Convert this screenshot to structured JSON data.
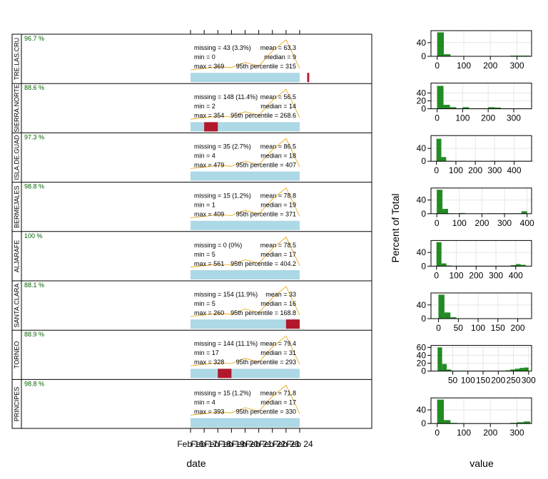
{
  "chart_data": [
    {
      "type": "summary-timeseries-panels",
      "xlabel": "date",
      "x_tick_labels": [
        "Feb 16",
        "Feb 17",
        "Feb 18",
        "Feb 19",
        "Feb 20",
        "Feb 21",
        "Feb 22",
        "Feb 23",
        "Feb 24"
      ],
      "series_line_color": "#E69F00",
      "missing_color": "#B2182B",
      "band_color": "#ADD8E6",
      "trace": [
        60,
        62,
        64,
        63,
        70,
        65,
        85,
        100,
        62
      ],
      "panels": [
        {
          "name": "TRE.LAS.CRU",
          "data_capture": "96.7 %",
          "missing": "missing = 43 (3.3%)",
          "min": "min = 0",
          "max": "max = 369",
          "mean": "mean = 63.3",
          "median": "median = 9",
          "p95": "95th percentile = 315",
          "missing_blocks": [
            [
              8.55,
              8.7
            ]
          ]
        },
        {
          "name": "SIERRA.NORTE",
          "data_capture": "88.6 %",
          "missing": "missing = 148 (11.4%)",
          "min": "min = 2",
          "max": "max = 354",
          "mean": "mean = 56.5",
          "median": "median = 14",
          "p95": "95th percentile = 268.6",
          "missing_blocks": [
            [
              1.0,
              2.0
            ]
          ]
        },
        {
          "name": "ISLA.DE.GUAD",
          "data_capture": "97.3 %",
          "missing": "missing = 35 (2.7%)",
          "min": "min = 4",
          "max": "max = 479",
          "mean": "mean = 86.5",
          "median": "median = 18",
          "p95": "95th percentile = 407",
          "missing_blocks": []
        },
        {
          "name": "BERMEJALES",
          "data_capture": "98.8 %",
          "missing": "missing = 15 (1.2%)",
          "min": "min = 1",
          "max": "max = 409",
          "mean": "mean = 78.8",
          "median": "median = 19",
          "p95": "95th percentile = 371",
          "missing_blocks": []
        },
        {
          "name": "ALJARAFE",
          "data_capture": "100 %",
          "missing": "missing = 0 (0%)",
          "min": "min = 5",
          "max": "max = 561",
          "mean": "mean = 78.5",
          "median": "median = 17",
          "p95": "95th percentile = 404.2",
          "missing_blocks": []
        },
        {
          "name": "SANTA.CLARA",
          "data_capture": "88.1 %",
          "missing": "missing = 154 (11.9%)",
          "min": "min = 5",
          "max": "max = 260",
          "mean": "mean = 33",
          "median": "median = 16",
          "p95": "95th percentile = 168.8",
          "missing_blocks": [
            [
              7.0,
              8.0
            ]
          ]
        },
        {
          "name": "TORNEO",
          "data_capture": "88.9 %",
          "missing": "missing = 144 (11.1%)",
          "min": "min = 17",
          "max": "max = 328",
          "mean": "mean = 79.4",
          "median": "median = 31",
          "p95": "95th percentile = 293",
          "missing_blocks": [
            [
              2.0,
              3.0
            ]
          ]
        },
        {
          "name": "PRINCIPES",
          "data_capture": "98.8 %",
          "missing": "missing = 15 (1.2%)",
          "min": "min = 4",
          "max": "max = 393",
          "mean": "mean = 71.8",
          "median": "median = 17",
          "p95": "95th percentile = 330",
          "missing_blocks": []
        }
      ]
    },
    {
      "type": "histogram",
      "xlabel": "value",
      "ylabel": "Percent of Total",
      "bar_color": "#228B22",
      "panels": [
        {
          "xlim": [
            -10,
            355
          ],
          "ticks": [
            0,
            100,
            200,
            300
          ],
          "ylim": [
            0,
            75
          ],
          "yticks": [
            0,
            40
          ],
          "bin_width": 25,
          "bin_start": 0,
          "values": [
            70,
            6,
            1,
            0.5,
            0.3,
            0.3,
            0.3,
            0.3,
            0.3,
            0.3,
            0.3,
            2,
            2,
            2
          ]
        },
        {
          "xlim": [
            -10,
            370
          ],
          "ticks": [
            0,
            100,
            200,
            300
          ],
          "ylim": [
            0,
            65
          ],
          "yticks": [
            0,
            20,
            40
          ],
          "bin_width": 25,
          "bin_start": 0,
          "values": [
            58,
            10,
            4,
            1,
            4,
            1,
            1,
            1,
            4,
            3,
            1,
            1,
            1,
            1
          ]
        },
        {
          "xlim": [
            -10,
            490
          ],
          "ticks": [
            0,
            100,
            200,
            300,
            400
          ],
          "ylim": [
            0,
            80
          ],
          "yticks": [
            0,
            40
          ],
          "bin_width": 25,
          "bin_start": 0,
          "values": [
            70,
            13,
            1,
            0.5,
            0.5,
            1,
            0.5,
            0.5,
            1,
            0.5,
            0.5,
            1,
            1,
            1,
            1,
            1,
            1,
            1,
            1,
            1
          ]
        },
        {
          "xlim": [
            -10,
            420
          ],
          "ticks": [
            0,
            100,
            200,
            300,
            400
          ],
          "ylim": [
            0,
            75
          ],
          "yticks": [
            0,
            40
          ],
          "bin_width": 25,
          "bin_start": 0,
          "values": [
            70,
            14,
            1,
            0.5,
            2,
            0.5,
            0.5,
            0.5,
            0.5,
            1,
            1,
            1,
            1,
            1,
            1,
            7
          ]
        },
        {
          "xlim": [
            -10,
            480
          ],
          "ticks": [
            0,
            100,
            200,
            300,
            400
          ],
          "ylim": [
            0,
            75
          ],
          "yticks": [
            0,
            40
          ],
          "bin_width": 25,
          "bin_start": 0,
          "values": [
            70,
            8,
            2,
            1,
            1,
            1,
            1,
            1,
            1,
            1,
            1,
            1,
            1,
            1,
            1,
            3,
            6,
            4
          ]
        },
        {
          "xlim": [
            -10,
            235
          ],
          "ticks": [
            0,
            50,
            100,
            150,
            200
          ],
          "ylim": [
            0,
            75
          ],
          "yticks": [
            0,
            40
          ],
          "bin_width": 15,
          "bin_start": 0,
          "values": [
            70,
            18,
            4,
            1,
            1,
            1,
            1,
            1,
            1,
            1,
            1,
            1,
            1,
            1,
            1
          ]
        },
        {
          "xlim": [
            -10,
            310
          ],
          "ticks": [
            50,
            100,
            150,
            200,
            250,
            300
          ],
          "ylim": [
            0,
            65
          ],
          "yticks": [
            0,
            20,
            40,
            60
          ],
          "bin_width": 15,
          "bin_start": 0,
          "values": [
            60,
            18,
            4,
            1,
            1,
            1,
            1,
            1,
            1,
            1,
            1,
            1,
            1,
            1,
            1,
            2,
            4,
            6,
            8,
            9
          ]
        },
        {
          "xlim": [
            -10,
            355
          ],
          "ticks": [
            0,
            100,
            200,
            300
          ],
          "ylim": [
            0,
            75
          ],
          "yticks": [
            0,
            40
          ],
          "bin_width": 25,
          "bin_start": 0,
          "values": [
            70,
            10,
            2,
            1,
            0.5,
            0.5,
            0.5,
            0.5,
            0.5,
            0.5,
            0.5,
            2,
            4,
            6
          ]
        }
      ]
    }
  ]
}
